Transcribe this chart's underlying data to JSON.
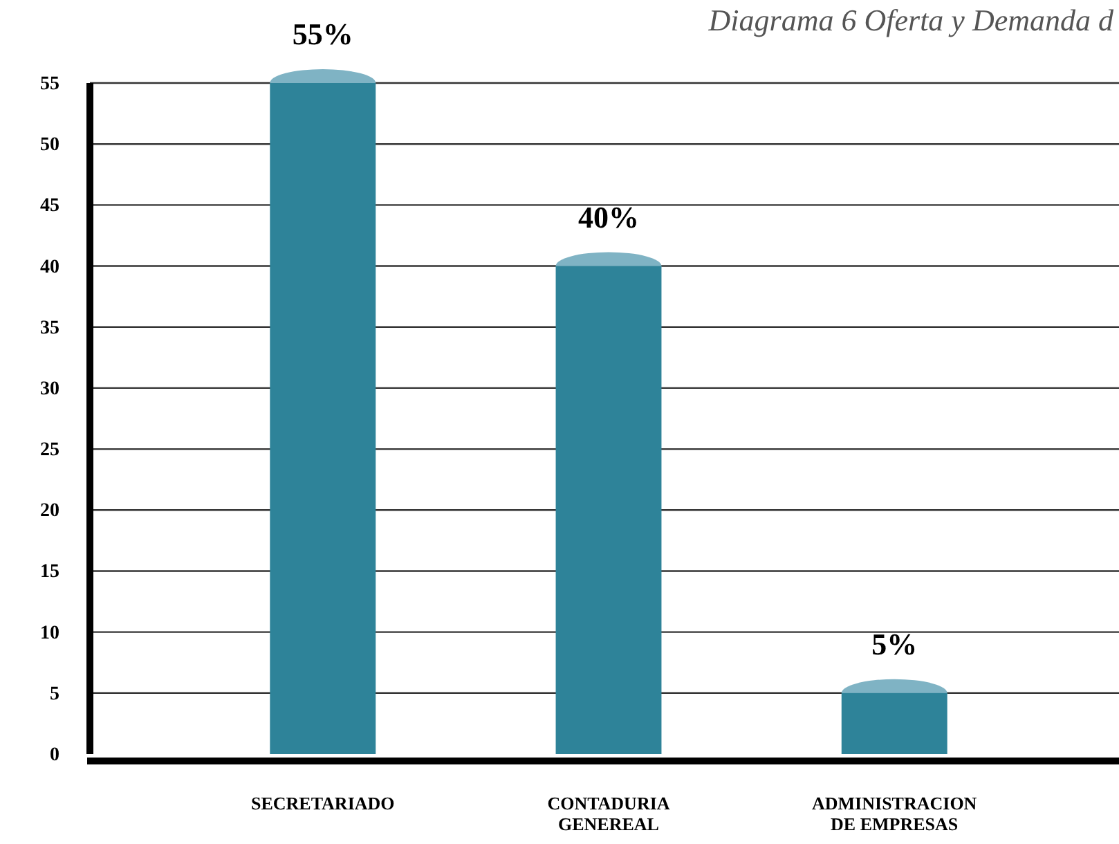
{
  "chart_data": {
    "type": "bar",
    "title": "Diagrama 6 Oferta y Demanda d",
    "categories": [
      "SECRETARIADO",
      "CONTADURIA\nGENEREAL",
      "ADMINISTRACION\nDE EMPRESAS"
    ],
    "values": [
      55,
      40,
      5
    ],
    "value_labels": [
      "55%",
      "40%",
      "5%"
    ],
    "color": "#2e8399",
    "ylim": [
      0,
      55
    ],
    "yticks": [
      0,
      5,
      10,
      15,
      20,
      25,
      30,
      35,
      40,
      45,
      50,
      55
    ],
    "grid": "y"
  }
}
